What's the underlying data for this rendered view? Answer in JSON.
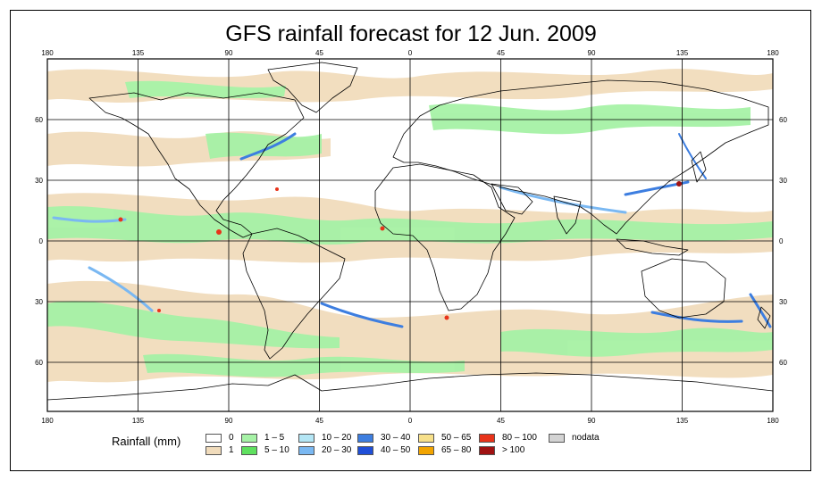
{
  "title": "GFS rainfall forecast for 12 Jun. 2009",
  "lon_ticks": [
    "180",
    "135",
    "90",
    "45",
    "0",
    "45",
    "90",
    "135",
    "180"
  ],
  "lat_ticks_left": [
    "60",
    "30",
    "0",
    "30",
    "60"
  ],
  "lat_ticks_right": [
    "60",
    "30",
    "0",
    "30",
    "60"
  ],
  "legend": {
    "title": "Rainfall (mm)",
    "items": [
      {
        "label": "0",
        "color": "#ffffff"
      },
      {
        "label": "1",
        "color": "#f1dcbc"
      },
      {
        "label": "1 – 5",
        "color": "#a6f2a6"
      },
      {
        "label": "5 – 10",
        "color": "#5fe05f"
      },
      {
        "label": "10 – 20",
        "color": "#b4e6f5"
      },
      {
        "label": "20 – 30",
        "color": "#7ab8f2"
      },
      {
        "label": "30 – 40",
        "color": "#3d7ee0"
      },
      {
        "label": "40 – 50",
        "color": "#1f4fd8"
      },
      {
        "label": "50 – 65",
        "color": "#f7e08a"
      },
      {
        "label": "65 – 80",
        "color": "#f2a400"
      },
      {
        "label": "80 – 100",
        "color": "#e8331a"
      },
      {
        "label": "> 100",
        "color": "#a01212"
      },
      {
        "label": "nodata",
        "color": "#d3d3d3"
      }
    ]
  }
}
